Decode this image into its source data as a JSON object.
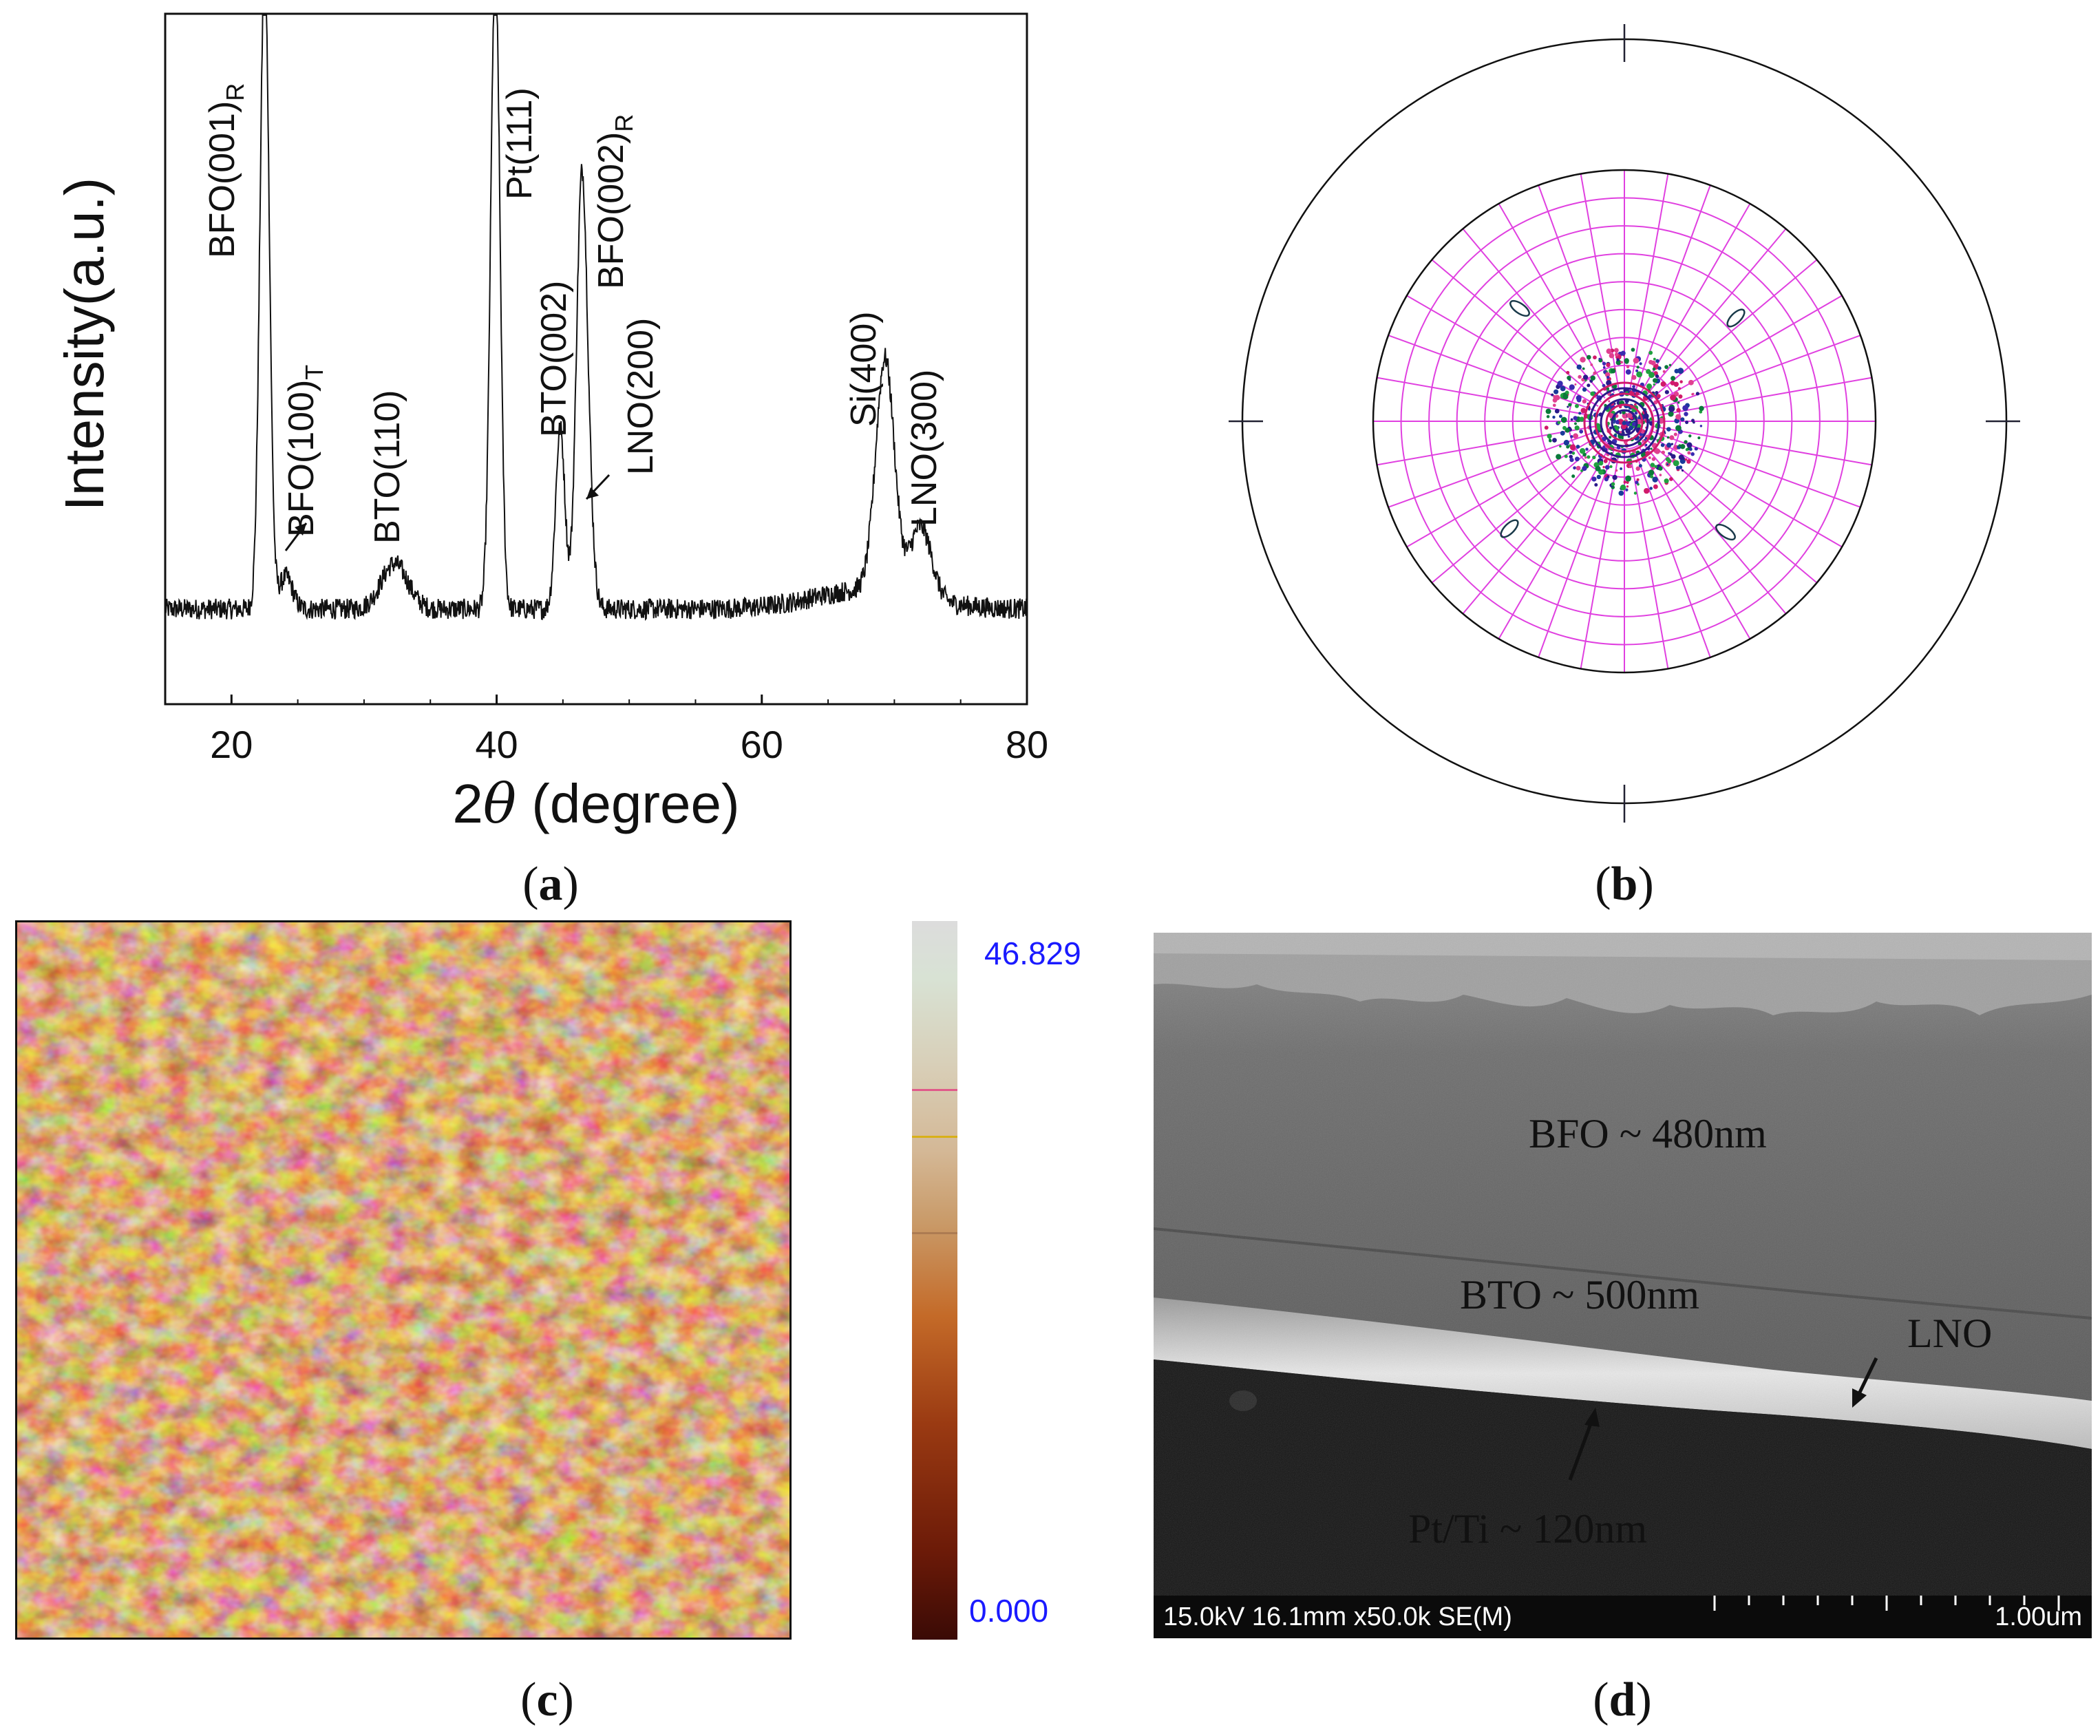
{
  "panel_a": {
    "caption": "a",
    "chart_data": {
      "type": "line",
      "title": "",
      "xlabel_prefix": "2",
      "xlabel_symbol": "θ",
      "xlabel_suffix": " (degree)",
      "ylabel": "Intensity(a.u.)",
      "xlim": [
        15,
        80
      ],
      "xticks": [
        "20",
        "40",
        "60",
        "80"
      ],
      "xtick_values": [
        20,
        40,
        60,
        80
      ],
      "baseline": 8,
      "peaks": [
        {
          "x": 22.5,
          "height": 100,
          "width": 0.35,
          "clipped": true
        },
        {
          "x": 24.1,
          "height": 5,
          "width": 0.5
        },
        {
          "x": 32.3,
          "height": 7,
          "width": 1.0
        },
        {
          "x": 39.9,
          "height": 100,
          "width": 0.35,
          "clipped": true
        },
        {
          "x": 44.8,
          "height": 28,
          "width": 0.35
        },
        {
          "x": 46.4,
          "height": 62,
          "width": 0.4
        },
        {
          "x": 46.9,
          "height": 12,
          "width": 0.4
        },
        {
          "x": 69.3,
          "height": 36,
          "width": 0.7
        },
        {
          "x": 72.0,
          "height": 11,
          "width": 0.8
        }
      ],
      "annotations": [
        {
          "base": "BFO(001)",
          "sub": "R"
        },
        {
          "base": "BFO(100)",
          "sub": "T"
        },
        {
          "base": "BTO(110)",
          "sub": ""
        },
        {
          "base": "Pt(111)",
          "sub": ""
        },
        {
          "base": "BTO(002)",
          "sub": ""
        },
        {
          "base": "BFO(002)",
          "sub": "R"
        },
        {
          "base": "LNO(200)",
          "sub": ""
        },
        {
          "base": "Si(400)",
          "sub": ""
        },
        {
          "base": "LNO(300)",
          "sub": ""
        }
      ]
    }
  },
  "panel_b": {
    "caption": "b",
    "rings": 9,
    "spokes": 36,
    "spot_count": 4
  },
  "panel_c": {
    "caption": "c",
    "colorbar_max": "46.829",
    "colorbar_min": "0.000"
  },
  "panel_d": {
    "caption": "d",
    "labels": {
      "bfo": "BFO ~ 480nm",
      "bto": "BTO ~ 500nm",
      "lno": "LNO",
      "pt": "Pt/Ti ~ 120nm"
    },
    "footer_left": "15.0kV 16.1mm x50.0k SE(M)",
    "footer_right": "1.00um"
  },
  "colors": {
    "grid": "#e040e0",
    "colorbar_pink": "#e05a8a",
    "colorbar_yellow": "#d8b018",
    "value_text": "#1a1aff"
  }
}
